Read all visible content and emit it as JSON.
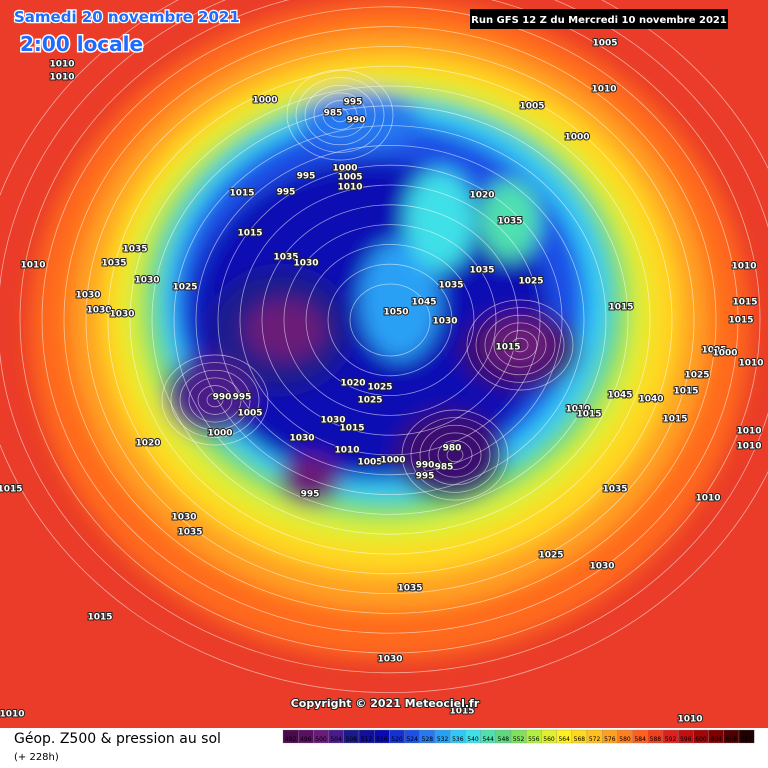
{
  "header": {
    "date": "Samedi 20 novembre 2021",
    "time": "2:00 locale",
    "run": "Run GFS 12 Z du Mercredi 10 novembre 2021"
  },
  "footer": {
    "title": "Géop. Z500 & pression au sol",
    "lead": "(+ 228h)",
    "copyright": "Copyright © 2021 Meteociel.fr"
  },
  "legend": {
    "labels": [
      492,
      496,
      500,
      504,
      508,
      512,
      516,
      520,
      524,
      528,
      532,
      536,
      540,
      544,
      548,
      552,
      556,
      560,
      564,
      568,
      572,
      576,
      580,
      584,
      588,
      592,
      596,
      600,
      604,
      608,
      612
    ],
    "colors": [
      "#4b0a4b",
      "#5a1060",
      "#6a1a78",
      "#4a1a8a",
      "#1a1a8c",
      "#10109a",
      "#0a0ab4",
      "#1432d2",
      "#1e50e6",
      "#2878f0",
      "#2aa0f5",
      "#30c8f8",
      "#40e0e8",
      "#50e0b0",
      "#60d880",
      "#80e060",
      "#b0f040",
      "#e0f030",
      "#fff020",
      "#ffd820",
      "#ffc020",
      "#ffa020",
      "#ff8020",
      "#ff6020",
      "#f04020",
      "#e02020",
      "#c01010",
      "#a00808",
      "#800000",
      "#500000",
      "#200000"
    ]
  },
  "pressure_labels": [
    1010,
    1010,
    1005,
    1010,
    1000,
    995,
    985,
    990,
    1005,
    1000,
    1000,
    1005,
    1010,
    995,
    995,
    1015,
    1020,
    1035,
    1015,
    1035,
    1035,
    1035,
    1030,
    1010,
    1030,
    1025,
    1035,
    1035,
    1025,
    1030,
    1030,
    1030,
    1045,
    1050,
    1030,
    1015,
    1010,
    1015,
    1015,
    1015,
    1005,
    1000,
    1010,
    1025,
    1015,
    1020,
    1025,
    1025,
    1045,
    1040,
    1010,
    1015,
    990,
    995,
    1005,
    1030,
    1015,
    1015,
    1010,
    1010,
    1000,
    1030,
    1010,
    980,
    1020,
    1005,
    1000,
    990,
    985,
    995,
    995,
    1035,
    1010,
    1015,
    1030,
    1035,
    1025,
    1030,
    1035,
    1015,
    1030,
    1010,
    1010,
    1015
  ]
}
